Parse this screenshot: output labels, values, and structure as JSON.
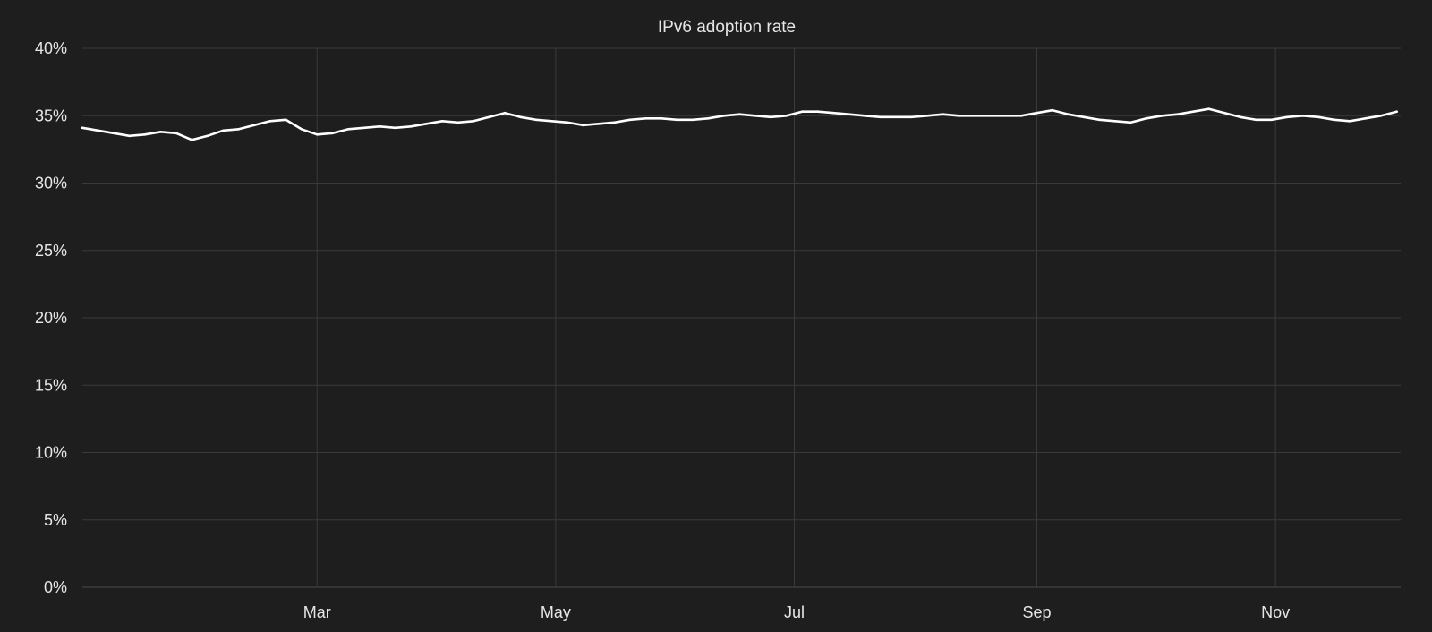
{
  "chart_data": {
    "type": "line",
    "title": "IPv6 adoption rate",
    "xlabel": "",
    "ylabel": "",
    "y_ticks": [
      "0%",
      "5%",
      "10%",
      "15%",
      "20%",
      "25%",
      "30%",
      "35%",
      "40%"
    ],
    "y_tick_values": [
      0,
      5,
      10,
      15,
      20,
      25,
      30,
      35,
      40
    ],
    "ylim": [
      0,
      40
    ],
    "x_ticks": [
      "Mar",
      "May",
      "Jul",
      "Sep",
      "Nov"
    ],
    "x_tick_dates": [
      "2024-03-01",
      "2024-05-01",
      "2024-07-01",
      "2024-09-01",
      "2024-11-01"
    ],
    "xlim": [
      "2024-01-01",
      "2024-12-03"
    ],
    "grid": true,
    "legend": "none",
    "colors": {
      "background": "#1e1e1e",
      "line": "#ffffff",
      "grid": "#3a3a3a",
      "text": "#e6e6e6"
    },
    "series": [
      {
        "x": [
          "2024-01-01",
          "2024-01-05",
          "2024-01-09",
          "2024-01-13",
          "2024-01-17",
          "2024-01-21",
          "2024-01-25",
          "2024-01-29",
          "2024-02-02",
          "2024-02-06",
          "2024-02-10",
          "2024-02-14",
          "2024-02-18",
          "2024-02-22",
          "2024-02-26",
          "2024-03-01",
          "2024-03-05",
          "2024-03-09",
          "2024-03-13",
          "2024-03-17",
          "2024-03-21",
          "2024-03-25",
          "2024-03-29",
          "2024-04-02",
          "2024-04-06",
          "2024-04-10",
          "2024-04-14",
          "2024-04-18",
          "2024-04-22",
          "2024-04-26",
          "2024-04-30",
          "2024-05-04",
          "2024-05-08",
          "2024-05-12",
          "2024-05-16",
          "2024-05-20",
          "2024-05-24",
          "2024-05-28",
          "2024-06-01",
          "2024-06-05",
          "2024-06-09",
          "2024-06-13",
          "2024-06-17",
          "2024-06-21",
          "2024-06-25",
          "2024-06-29",
          "2024-07-03",
          "2024-07-07",
          "2024-07-11",
          "2024-07-15",
          "2024-07-19",
          "2024-07-23",
          "2024-07-27",
          "2024-07-31",
          "2024-08-04",
          "2024-08-08",
          "2024-08-12",
          "2024-08-16",
          "2024-08-20",
          "2024-08-24",
          "2024-08-28",
          "2024-09-01",
          "2024-09-05",
          "2024-09-09",
          "2024-09-13",
          "2024-09-17",
          "2024-09-21",
          "2024-09-25",
          "2024-09-29",
          "2024-10-03",
          "2024-10-07",
          "2024-10-11",
          "2024-10-15",
          "2024-10-19",
          "2024-10-23",
          "2024-10-27",
          "2024-10-31",
          "2024-11-04",
          "2024-11-08",
          "2024-11-12",
          "2024-11-16",
          "2024-11-20",
          "2024-11-24",
          "2024-11-28",
          "2024-12-02"
        ],
        "values": [
          34.1,
          33.9,
          33.7,
          33.5,
          33.6,
          33.8,
          33.7,
          33.2,
          33.5,
          33.9,
          34.0,
          34.3,
          34.6,
          34.7,
          34.0,
          33.6,
          33.7,
          34.0,
          34.1,
          34.2,
          34.1,
          34.2,
          34.4,
          34.6,
          34.5,
          34.6,
          34.9,
          35.2,
          34.9,
          34.7,
          34.6,
          34.5,
          34.3,
          34.4,
          34.5,
          34.7,
          34.8,
          34.8,
          34.7,
          34.7,
          34.8,
          35.0,
          35.1,
          35.0,
          34.9,
          35.0,
          35.3,
          35.3,
          35.2,
          35.1,
          35.0,
          34.9,
          34.9,
          34.9,
          35.0,
          35.1,
          35.0,
          35.0,
          35.0,
          35.0,
          35.0,
          35.2,
          35.4,
          35.1,
          34.9,
          34.7,
          34.6,
          34.5,
          34.8,
          35.0,
          35.1,
          35.3,
          35.5,
          35.2,
          34.9,
          34.7,
          34.7,
          34.9,
          35.0,
          34.9,
          34.7,
          34.6,
          34.8,
          35.0,
          35.3
        ]
      }
    ]
  }
}
